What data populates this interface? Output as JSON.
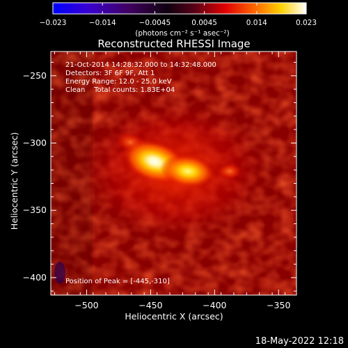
{
  "colorbar": {
    "tick_labels": [
      "−0.023",
      "−0.014",
      "−0.0045",
      "0.0045",
      "0.014",
      "0.023"
    ],
    "tick_values": [
      -0.023,
      -0.014,
      -0.0045,
      0.0045,
      0.014,
      0.023
    ],
    "range": [
      -0.023,
      0.023
    ],
    "units_text": "(photons cm⁻² s⁻¹ asec⁻²)",
    "colors": [
      "#0000ff",
      "#4000c0",
      "#300030",
      "#000000",
      "#800020",
      "#ff0000",
      "#ffa000",
      "#ffff00",
      "#ffffff"
    ]
  },
  "image": {
    "title": "Reconstructed RHESSI Image",
    "info_lines": [
      "21-Oct-2014 14:28:32.000 to 14:32:48.000",
      "Detectors: 3F 6F 9F, Att 1",
      "Energy Range: 12.0 - 25.0 keV",
      "Clean    Total counts: 1.83E+04"
    ],
    "peak_text": "Position of Peak = [-445,-310]",
    "peak": [
      -445,
      -310
    ]
  },
  "axes": {
    "x_label": "Heliocentric X (arcsec)",
    "y_label": "Heliocentric Y (arcsec)",
    "x_range": [
      -528,
      -336
    ],
    "y_range": [
      -413,
      -232
    ],
    "x_ticks": [
      -500,
      -450,
      -400,
      -350
    ],
    "x_tick_labels": [
      "−500",
      "−450",
      "−400",
      "−350"
    ],
    "y_ticks": [
      -250,
      -300,
      -350,
      -400
    ],
    "y_tick_labels": [
      "−250",
      "−300",
      "−350",
      "−400"
    ]
  },
  "footer": {
    "timestamp": "18-May-2022 12:18"
  }
}
